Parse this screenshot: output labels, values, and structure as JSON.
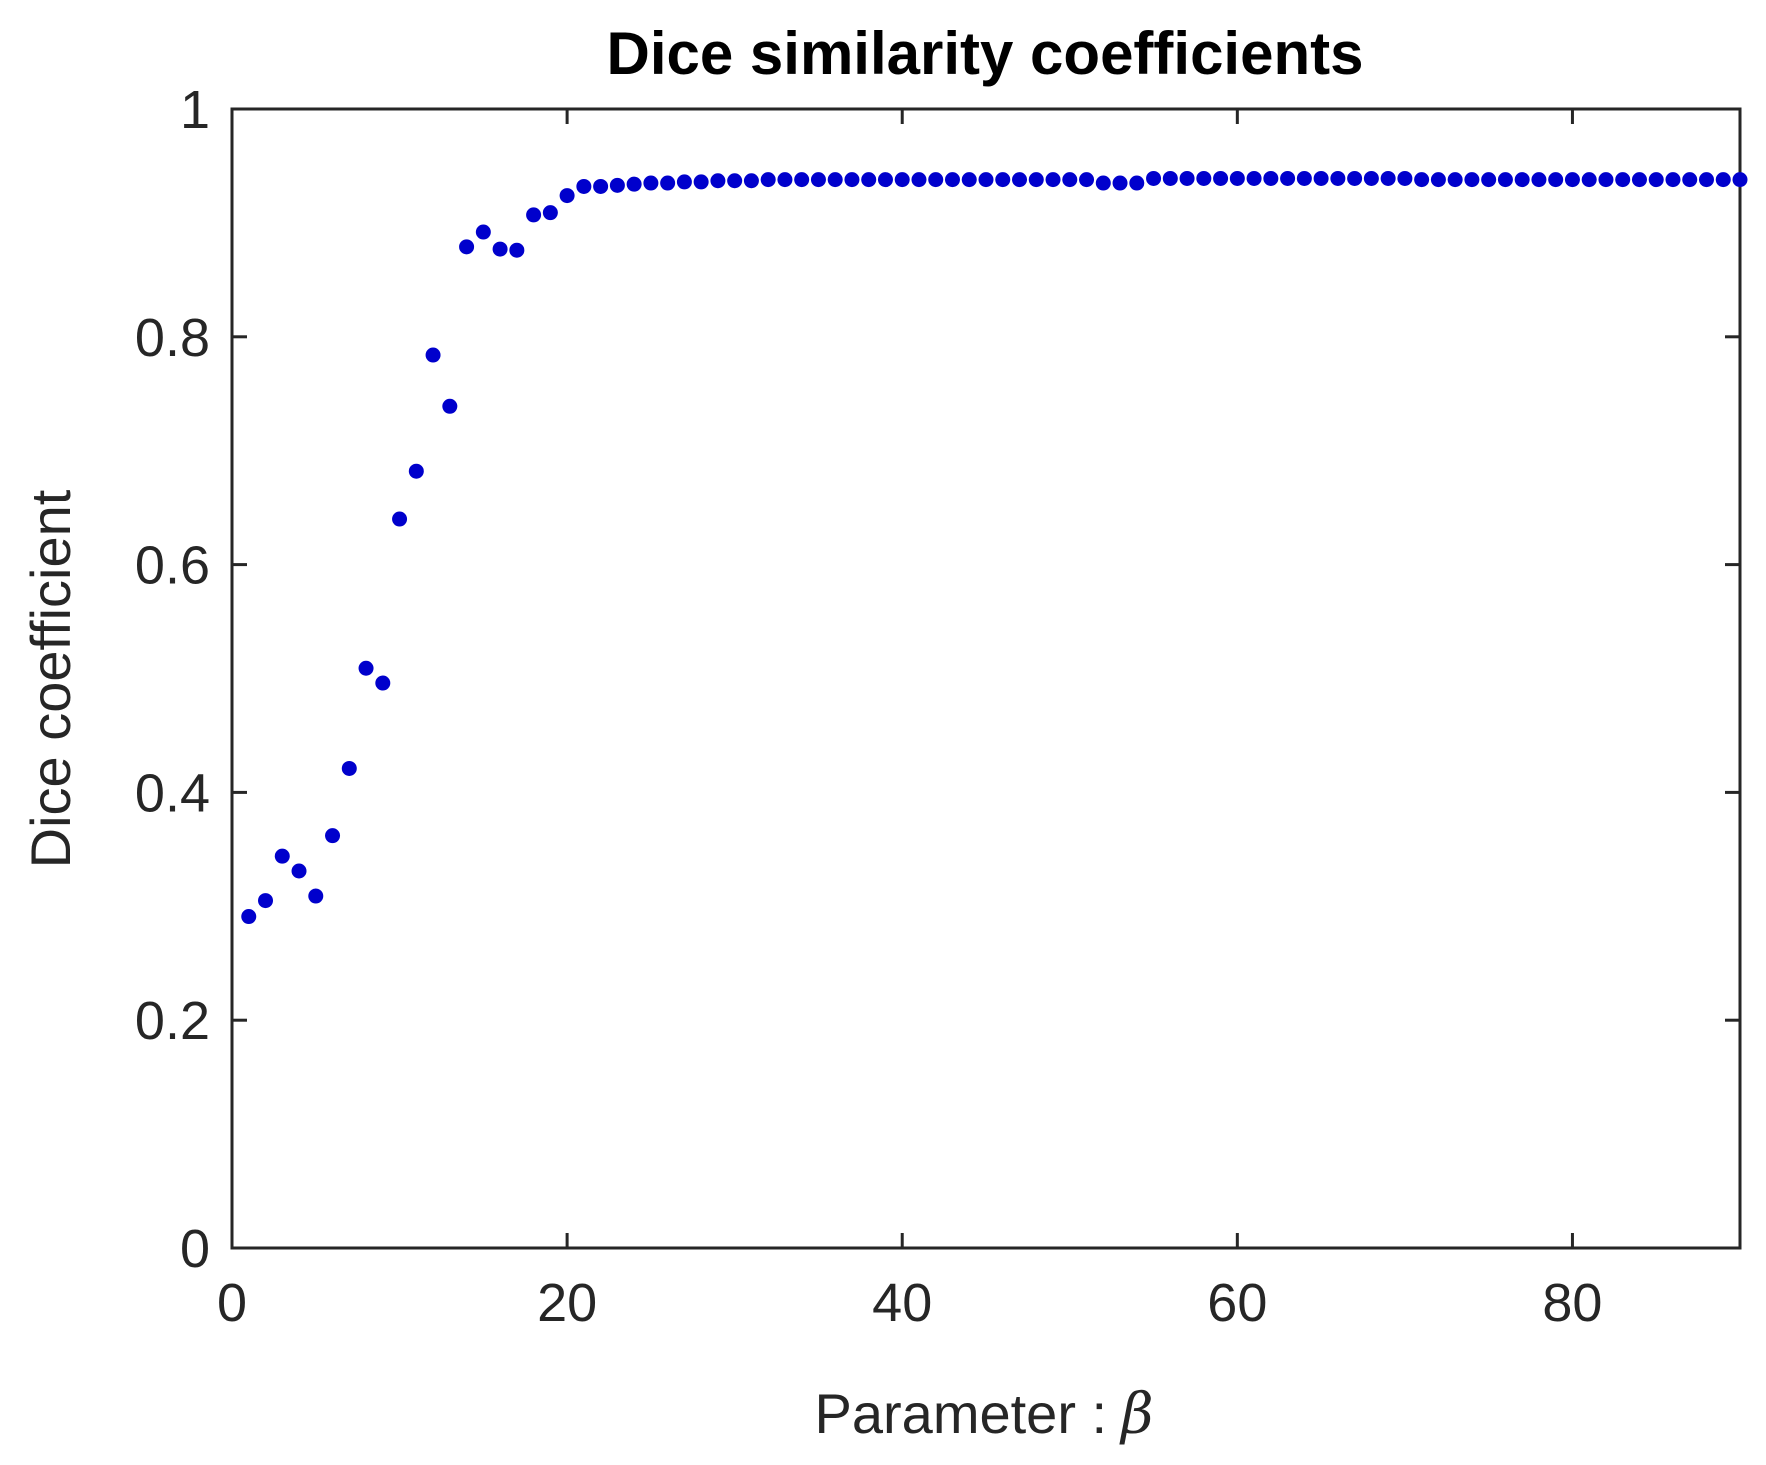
{
  "chart_data": {
    "type": "scatter",
    "title": "Dice similarity coefficients",
    "xlabel": "Parameter :",
    "xlabel_symbol": "β",
    "ylabel": "Dice coefficient",
    "xlim": [
      0,
      90
    ],
    "ylim": [
      0,
      1
    ],
    "xticks": [
      0,
      20,
      40,
      60,
      80
    ],
    "xtick_labels": [
      "0",
      "20",
      "40",
      "60",
      "80"
    ],
    "yticks": [
      0,
      0.2,
      0.4,
      0.6,
      0.8,
      1
    ],
    "ytick_labels": [
      "0",
      "0.2",
      "0.4",
      "0.6",
      "0.8",
      "1"
    ],
    "grid": false,
    "marker_color": "#0000cc",
    "axis_color": "#262626",
    "series": [
      {
        "x": [
          1,
          2,
          3,
          4,
          5,
          6,
          7,
          8,
          9,
          10,
          11,
          12,
          13,
          14,
          15,
          16,
          17,
          18,
          19,
          20,
          21,
          22,
          23,
          24,
          25,
          26,
          27,
          28,
          29,
          30,
          31,
          32,
          33,
          34,
          35,
          36,
          37,
          38,
          39,
          40,
          41,
          42,
          43,
          44,
          45,
          46,
          47,
          48,
          49,
          50,
          51,
          52,
          53,
          54,
          55,
          56,
          57,
          58,
          59,
          60,
          61,
          62,
          63,
          64,
          65,
          66,
          67,
          68,
          69,
          70,
          71,
          72,
          73,
          74,
          75,
          76,
          77,
          78,
          79,
          80,
          81,
          82,
          83,
          84,
          85,
          86,
          87,
          88,
          89,
          90
        ],
        "y": [
          0.291,
          0.305,
          0.344,
          0.331,
          0.309,
          0.362,
          0.421,
          0.509,
          0.496,
          0.64,
          0.682,
          0.784,
          0.739,
          0.879,
          0.892,
          0.877,
          0.876,
          0.907,
          0.909,
          0.924,
          0.932,
          0.932,
          0.933,
          0.934,
          0.935,
          0.935,
          0.936,
          0.936,
          0.937,
          0.937,
          0.937,
          0.938,
          0.938,
          0.938,
          0.938,
          0.938,
          0.938,
          0.938,
          0.938,
          0.938,
          0.938,
          0.938,
          0.938,
          0.938,
          0.938,
          0.938,
          0.938,
          0.938,
          0.938,
          0.938,
          0.938,
          0.935,
          0.935,
          0.935,
          0.939,
          0.939,
          0.939,
          0.939,
          0.939,
          0.939,
          0.939,
          0.939,
          0.939,
          0.939,
          0.939,
          0.939,
          0.939,
          0.939,
          0.939,
          0.939,
          0.938,
          0.938,
          0.938,
          0.938,
          0.938,
          0.938,
          0.938,
          0.938,
          0.938,
          0.938,
          0.938,
          0.938,
          0.938,
          0.938,
          0.938,
          0.938,
          0.938,
          0.938,
          0.938,
          0.938
        ]
      }
    ]
  }
}
